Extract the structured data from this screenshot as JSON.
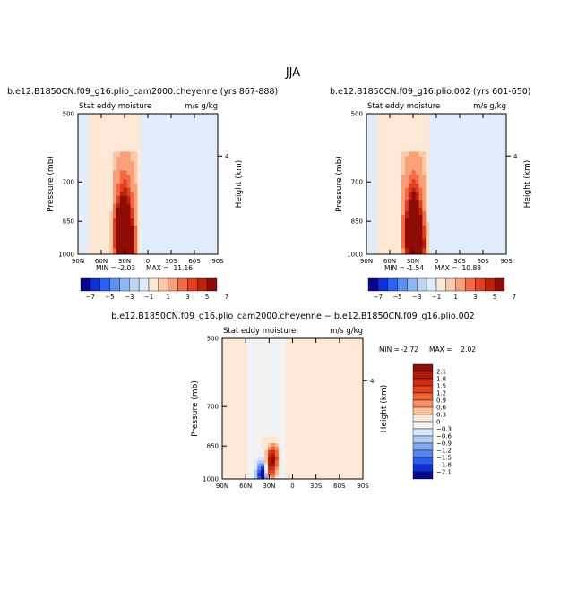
{
  "figure_title": "JJA",
  "colors": {
    "axis": "#000000",
    "background": "#ffffff"
  },
  "chart_data": [
    {
      "type": "heatmap",
      "panel_id": "top-left",
      "title": "b.e12.B1850CN.f09_g16.plio_cam2000.cheyenne (yrs 867-888)",
      "left_label": "Stat eddy moisture",
      "right_label": "m/s g/kg",
      "xlabel": "",
      "ylabel": "Pressure (mb)",
      "ylabel_right": "Height (km)",
      "x_ticks": [
        "90N",
        "60N",
        "30N",
        "0",
        "30S",
        "60S",
        "90S"
      ],
      "x_values": [
        90,
        60,
        30,
        0,
        -30,
        -60,
        -90
      ],
      "xlim": [
        90,
        -90
      ],
      "y_ticks": [
        "500",
        "700",
        "850",
        "1000"
      ],
      "y_values": [
        500,
        700,
        850,
        1000
      ],
      "ylim": [
        1000,
        500
      ],
      "y_right_ticks": [
        "4"
      ],
      "y_right_pressure": [
        616
      ],
      "stats": {
        "min_label": "MIN =",
        "min": "-2.03",
        "max_label": "MAX =",
        "max": "11.16"
      },
      "features": [
        {
          "lat": 28,
          "p": 960,
          "value": 11.16
        },
        {
          "lat": 33,
          "p": 900,
          "value": 7.0
        },
        {
          "lat": 30,
          "p": 780,
          "value": 3.0
        }
      ]
    },
    {
      "type": "heatmap",
      "panel_id": "top-right",
      "title": "b.e12.B1850CN.f09_g16.plio.002 (yrs 601-650)",
      "left_label": "Stat eddy moisture",
      "right_label": "m/s g/kg",
      "xlabel": "",
      "ylabel": "Pressure (mb)",
      "ylabel_right": "Height (km)",
      "x_ticks": [
        "90N",
        "60N",
        "30N",
        "0",
        "30S",
        "60S",
        "90S"
      ],
      "x_values": [
        90,
        60,
        30,
        0,
        -30,
        -60,
        -90
      ],
      "xlim": [
        90,
        -90
      ],
      "y_ticks": [
        "500",
        "700",
        "850",
        "1000"
      ],
      "y_values": [
        500,
        700,
        850,
        1000
      ],
      "ylim": [
        1000,
        500
      ],
      "y_right_ticks": [
        "4"
      ],
      "y_right_pressure": [
        616
      ],
      "stats": {
        "min_label": "MIN =",
        "min": "-1.54",
        "max_label": "MAX =",
        "max": "10.88"
      },
      "features": [
        {
          "lat": 26,
          "p": 960,
          "value": 10.88
        },
        {
          "lat": 31,
          "p": 900,
          "value": 7.0
        },
        {
          "lat": 29,
          "p": 780,
          "value": 3.0
        }
      ]
    },
    {
      "type": "heatmap",
      "panel_id": "bottom-diff",
      "title": "b.e12.B1850CN.f09_g16.plio_cam2000.cheyenne − b.e12.B1850CN.f09_g16.plio.002",
      "left_label": "Stat eddy moisture",
      "right_label": "m/s g/kg",
      "xlabel": "",
      "ylabel": "Pressure (mb)",
      "ylabel_right": "Height (km)",
      "x_ticks": [
        "90N",
        "60N",
        "30N",
        "0",
        "30S",
        "60S",
        "90S"
      ],
      "x_values": [
        90,
        60,
        30,
        0,
        -30,
        -60,
        -90
      ],
      "xlim": [
        90,
        -90
      ],
      "y_ticks": [
        "500",
        "700",
        "850",
        "1000"
      ],
      "y_values": [
        500,
        700,
        850,
        1000
      ],
      "ylim": [
        1000,
        500
      ],
      "y_right_ticks": [
        "4"
      ],
      "y_right_pressure": [
        616
      ],
      "stats": {
        "min_label": "MIN =",
        "min": "-2.72",
        "max_label": "MAX =",
        "max": "2.02"
      },
      "features": [
        {
          "lat": 38,
          "p": 975,
          "value": -2.72
        },
        {
          "lat": 25,
          "p": 900,
          "value": 2.02
        },
        {
          "lat": 30,
          "p": 960,
          "value": 1.5
        }
      ]
    }
  ],
  "colorbars": {
    "top": {
      "orientation": "horizontal",
      "levels": [
        -7,
        -5,
        -3,
        -1,
        1,
        3,
        5,
        7
      ],
      "labels": [
        "−7",
        "−5",
        "−3",
        "−1",
        "1",
        "3",
        "5",
        "7"
      ],
      "colors": [
        "#08088f",
        "#0d2fd9",
        "#2a62f5",
        "#5a8ef0",
        "#8fb5f2",
        "#bcd4f5",
        "#e0ecfa",
        "#fde8d5",
        "#fbc9a8",
        "#f7a07a",
        "#f26b43",
        "#e0401f",
        "#c0200e",
        "#8f0c06"
      ]
    },
    "bottom": {
      "orientation": "vertical",
      "labels": [
        "2.1",
        "1.8",
        "1.5",
        "1.2",
        "0.9",
        "0.6",
        "0.3",
        "0",
        "−0.3",
        "−0.6",
        "−0.9",
        "−1.2",
        "−1.5",
        "−1.8",
        "−2.1"
      ],
      "colors": [
        "#8f0c06",
        "#b01a0a",
        "#cf2d12",
        "#e0401f",
        "#ef6236",
        "#f7906a",
        "#fbbf9a",
        "#fde8d5",
        "#f2f2f2",
        "#d8e7fa",
        "#afcbf4",
        "#82a8ef",
        "#5485ec",
        "#2a5ef0",
        "#0d2fd9",
        "#08088f"
      ]
    }
  }
}
